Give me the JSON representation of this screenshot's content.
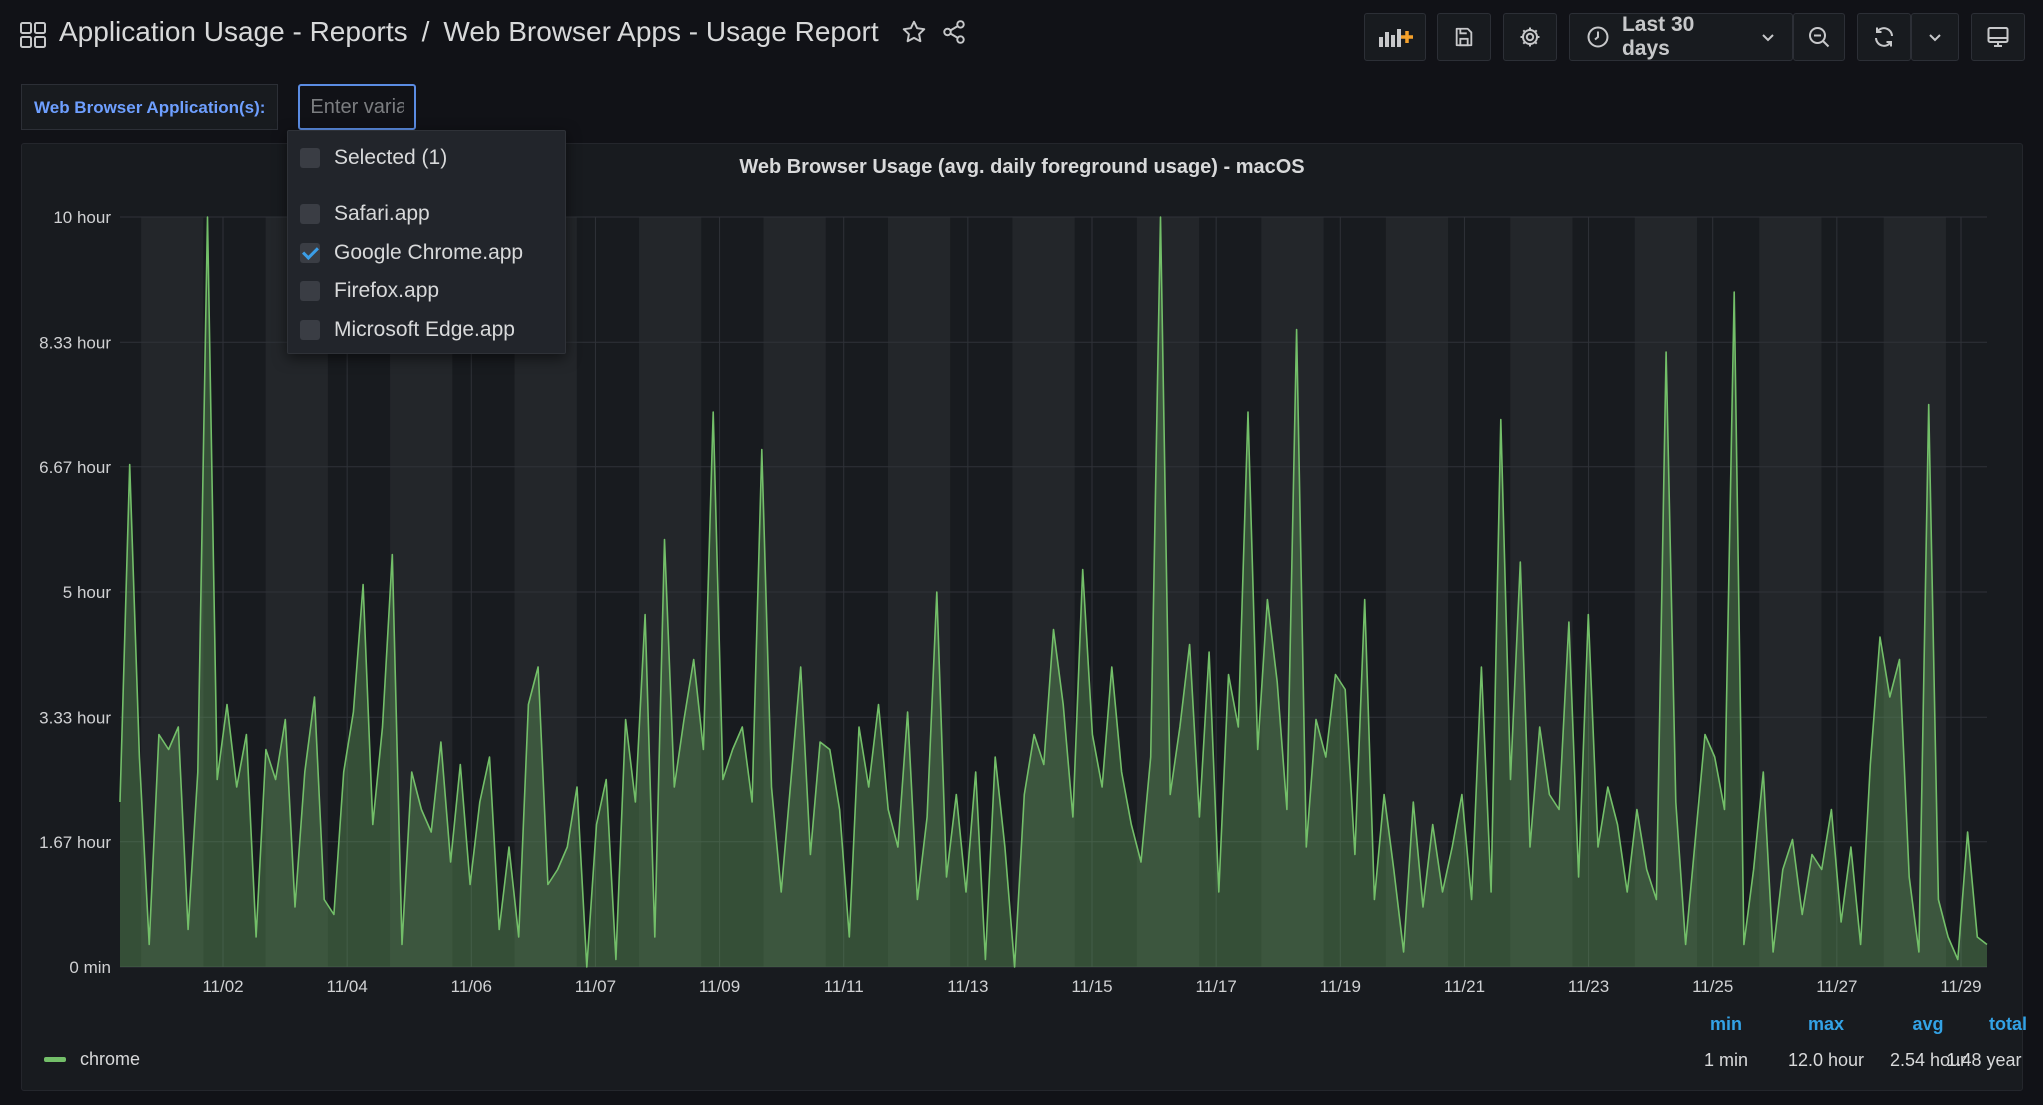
{
  "header": {
    "breadcrumb_folder": "Application Usage - Reports",
    "breadcrumb_separator": "/",
    "dashboard_title": "Web Browser Apps - Usage Report",
    "time_range": "Last 30 days"
  },
  "variable": {
    "label": "Web Browser Application(s):",
    "placeholder": "Enter variable value",
    "dropdown": {
      "selected_label": "Selected (1)",
      "options": [
        {
          "label": "Safari.app",
          "checked": false
        },
        {
          "label": "Google Chrome.app",
          "checked": true
        },
        {
          "label": "Firefox.app",
          "checked": false
        },
        {
          "label": "Microsoft Edge.app",
          "checked": false
        }
      ]
    }
  },
  "panel": {
    "title": "Web Browser Usage (avg. daily foreground usage) - macOS"
  },
  "legend": {
    "series_name": "chrome",
    "stats_headers": [
      "min",
      "max",
      "avg",
      "total"
    ],
    "stats_values": [
      "1 min",
      "12.0 hour",
      "2.54 hour",
      "1.48 year"
    ]
  },
  "colors": {
    "series": "#73bf69",
    "stat_header": "#33a2e5",
    "variable_label": "#6e9fff"
  },
  "chart_data": {
    "type": "area",
    "ylabel": "",
    "y_tick_labels": [
      "0 min",
      "1.67 hour",
      "3.33 hour",
      "5 hour",
      "6.67 hour",
      "8.33 hour",
      "10 hour"
    ],
    "y_tick_values": [
      0,
      1.67,
      3.33,
      5,
      6.67,
      8.33,
      10
    ],
    "ylim": [
      0,
      10
    ],
    "x_tick_labels": [
      "11/02",
      "11/04",
      "11/06",
      "11/07",
      "11/09",
      "11/11",
      "11/13",
      "11/15",
      "11/17",
      "11/19",
      "11/21",
      "11/23",
      "11/25",
      "11/27",
      "11/29"
    ],
    "grid": true,
    "series": [
      {
        "name": "chrome",
        "values": [
          2.2,
          6.7,
          2.8,
          0.3,
          3.1,
          2.9,
          3.2,
          0.5,
          2.6,
          10.0,
          2.5,
          3.5,
          2.4,
          3.1,
          0.4,
          2.9,
          2.5,
          3.3,
          0.8,
          2.6,
          3.6,
          0.9,
          0.7,
          2.6,
          3.4,
          5.1,
          1.9,
          3.2,
          5.5,
          0.3,
          2.6,
          2.1,
          1.8,
          3.0,
          1.4,
          2.7,
          1.1,
          2.2,
          2.8,
          0.5,
          1.6,
          0.4,
          3.5,
          4.0,
          1.1,
          1.3,
          1.6,
          2.4,
          0.0,
          1.9,
          2.5,
          0.1,
          3.3,
          2.2,
          4.7,
          0.4,
          5.7,
          2.4,
          3.3,
          4.1,
          2.9,
          7.4,
          2.5,
          2.9,
          3.2,
          2.2,
          6.9,
          2.4,
          1.0,
          2.5,
          4.0,
          1.5,
          3.0,
          2.9,
          2.1,
          0.4,
          3.2,
          2.4,
          3.5,
          2.1,
          1.6,
          3.4,
          0.9,
          2.0,
          5.0,
          1.2,
          2.3,
          1.0,
          2.6,
          0.1,
          2.8,
          1.6,
          0.0,
          2.3,
          3.1,
          2.7,
          4.5,
          3.5,
          2.0,
          5.3,
          3.1,
          2.4,
          4.0,
          2.6,
          1.9,
          1.4,
          2.8,
          10.0,
          2.3,
          3.2,
          4.3,
          2.0,
          4.2,
          1.0,
          3.9,
          3.2,
          7.4,
          2.9,
          4.9,
          3.8,
          2.1,
          8.5,
          1.6,
          3.3,
          2.8,
          3.9,
          3.7,
          1.5,
          4.9,
          0.9,
          2.3,
          1.3,
          0.2,
          2.2,
          0.8,
          1.9,
          1.0,
          1.6,
          2.3,
          0.9,
          4.0,
          1.0,
          7.3,
          2.5,
          5.4,
          1.6,
          3.2,
          2.3,
          2.1,
          4.6,
          1.2,
          4.7,
          1.6,
          2.4,
          1.9,
          1.0,
          2.1,
          1.3,
          0.9,
          8.2,
          2.2,
          0.3,
          1.7,
          3.1,
          2.8,
          2.1,
          9.0,
          0.3,
          1.3,
          2.6,
          0.2,
          1.3,
          1.7,
          0.7,
          1.5,
          1.3,
          2.1,
          0.6,
          1.6,
          0.3,
          2.7,
          4.4,
          3.6,
          4.1,
          1.2,
          0.2,
          7.5,
          0.9,
          0.4,
          0.1,
          1.8,
          0.4,
          0.3
        ]
      }
    ]
  }
}
